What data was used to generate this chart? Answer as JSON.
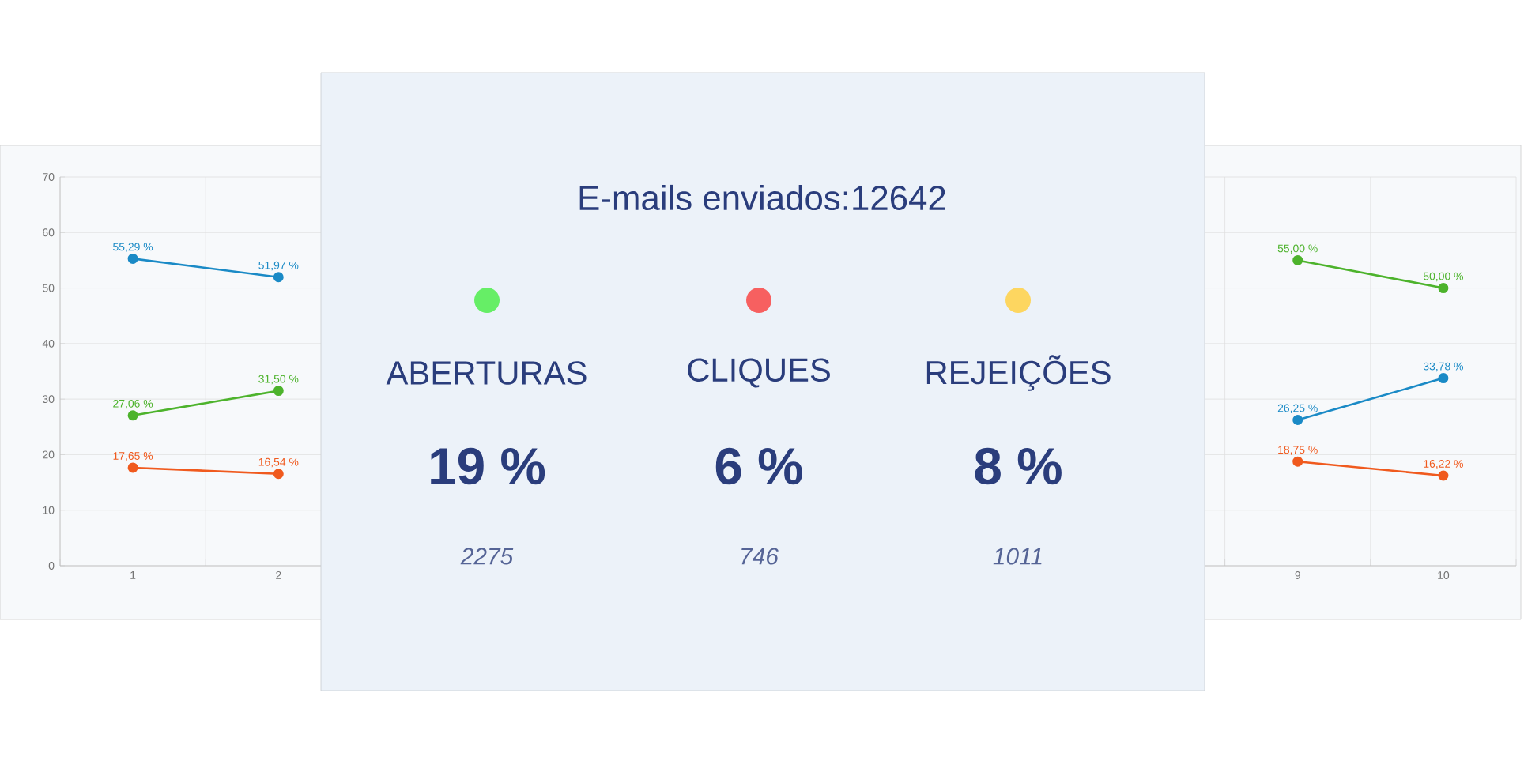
{
  "chart_data": [
    {
      "type": "line",
      "categories": [
        "1",
        "2",
        null,
        null,
        null,
        null,
        null,
        null,
        "9",
        "10"
      ],
      "ylim": [
        0,
        70
      ],
      "yticks": [
        0,
        10,
        20,
        30,
        40,
        50,
        60,
        70
      ],
      "grid": true,
      "marker": "circle",
      "line_style": "solid",
      "series": [
        {
          "color": "#1a8ac6",
          "values": [
            55.29,
            51.97,
            null,
            null,
            null,
            null,
            null,
            null,
            26.25,
            33.78
          ],
          "value_labels": [
            "55,29 %",
            "51,97 %",
            null,
            null,
            null,
            null,
            null,
            null,
            "26,25 %",
            "33,78 %"
          ]
        },
        {
          "color": "#4db32c",
          "values": [
            27.06,
            31.5,
            null,
            null,
            null,
            null,
            null,
            null,
            55.0,
            50.0
          ],
          "value_labels": [
            "27,06 %",
            "31,50 %",
            null,
            null,
            null,
            null,
            null,
            null,
            "55,00 %",
            "50,00 %"
          ]
        },
        {
          "color": "#f05a1e",
          "values": [
            17.65,
            16.54,
            null,
            null,
            null,
            null,
            null,
            null,
            18.75,
            16.22
          ],
          "value_labels": [
            "17,65 %",
            "16,54 %",
            null,
            null,
            null,
            null,
            null,
            null,
            "18,75 %",
            "16,22 %"
          ]
        }
      ]
    },
    {
      "type": "other",
      "title": "E-mails enviados:12642",
      "categories": [
        "ABERTURAS",
        "CLIQUES",
        "REJEIÇÕES"
      ],
      "value_labels": [
        "19 %",
        "6 %",
        "8 %"
      ],
      "colors": [
        "#66ee66",
        "#f76060",
        "#fdd660"
      ],
      "annotations": [
        "2275",
        "746",
        "1011"
      ]
    }
  ]
}
